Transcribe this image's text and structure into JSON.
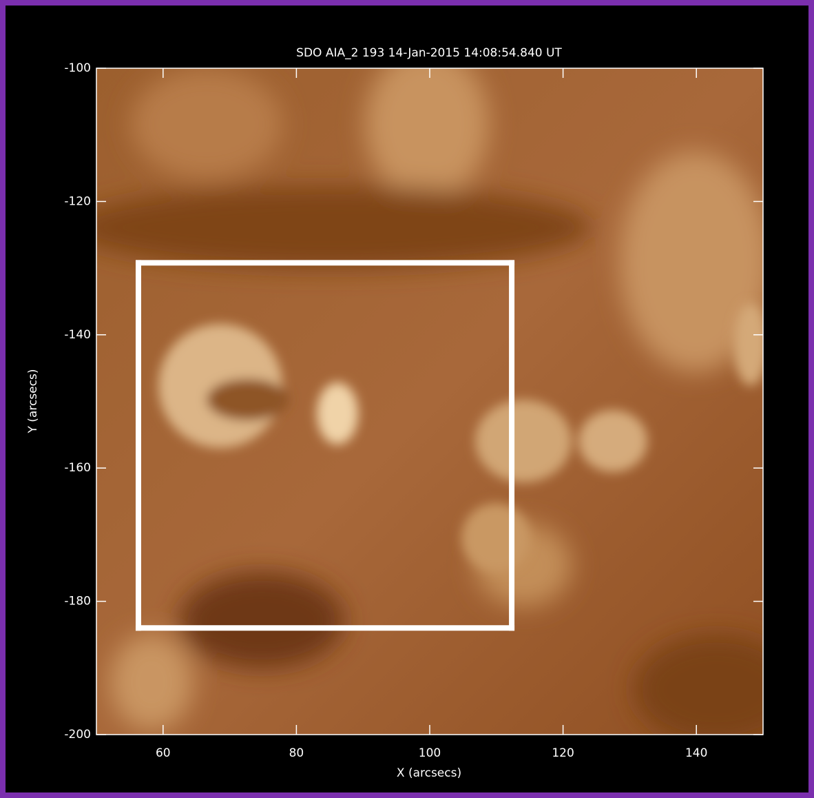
{
  "chart_data": {
    "type": "image",
    "title": "SDO AIA_2 193 14-Jan-2015 14:08:54.840 UT",
    "x_label": "X (arcsecs)",
    "y_label": "Y (arcsecs)",
    "xlim": [
      50,
      150
    ],
    "ylim": [
      -200,
      -100
    ],
    "xticks": [
      60,
      80,
      100,
      120,
      140
    ],
    "yticks": [
      -200,
      -180,
      -160,
      -140,
      -120,
      -100
    ],
    "box": {
      "x": [
        56.3,
        112.3
      ],
      "y": [
        -184,
        -129.2
      ],
      "color": "#ffffff"
    }
  }
}
